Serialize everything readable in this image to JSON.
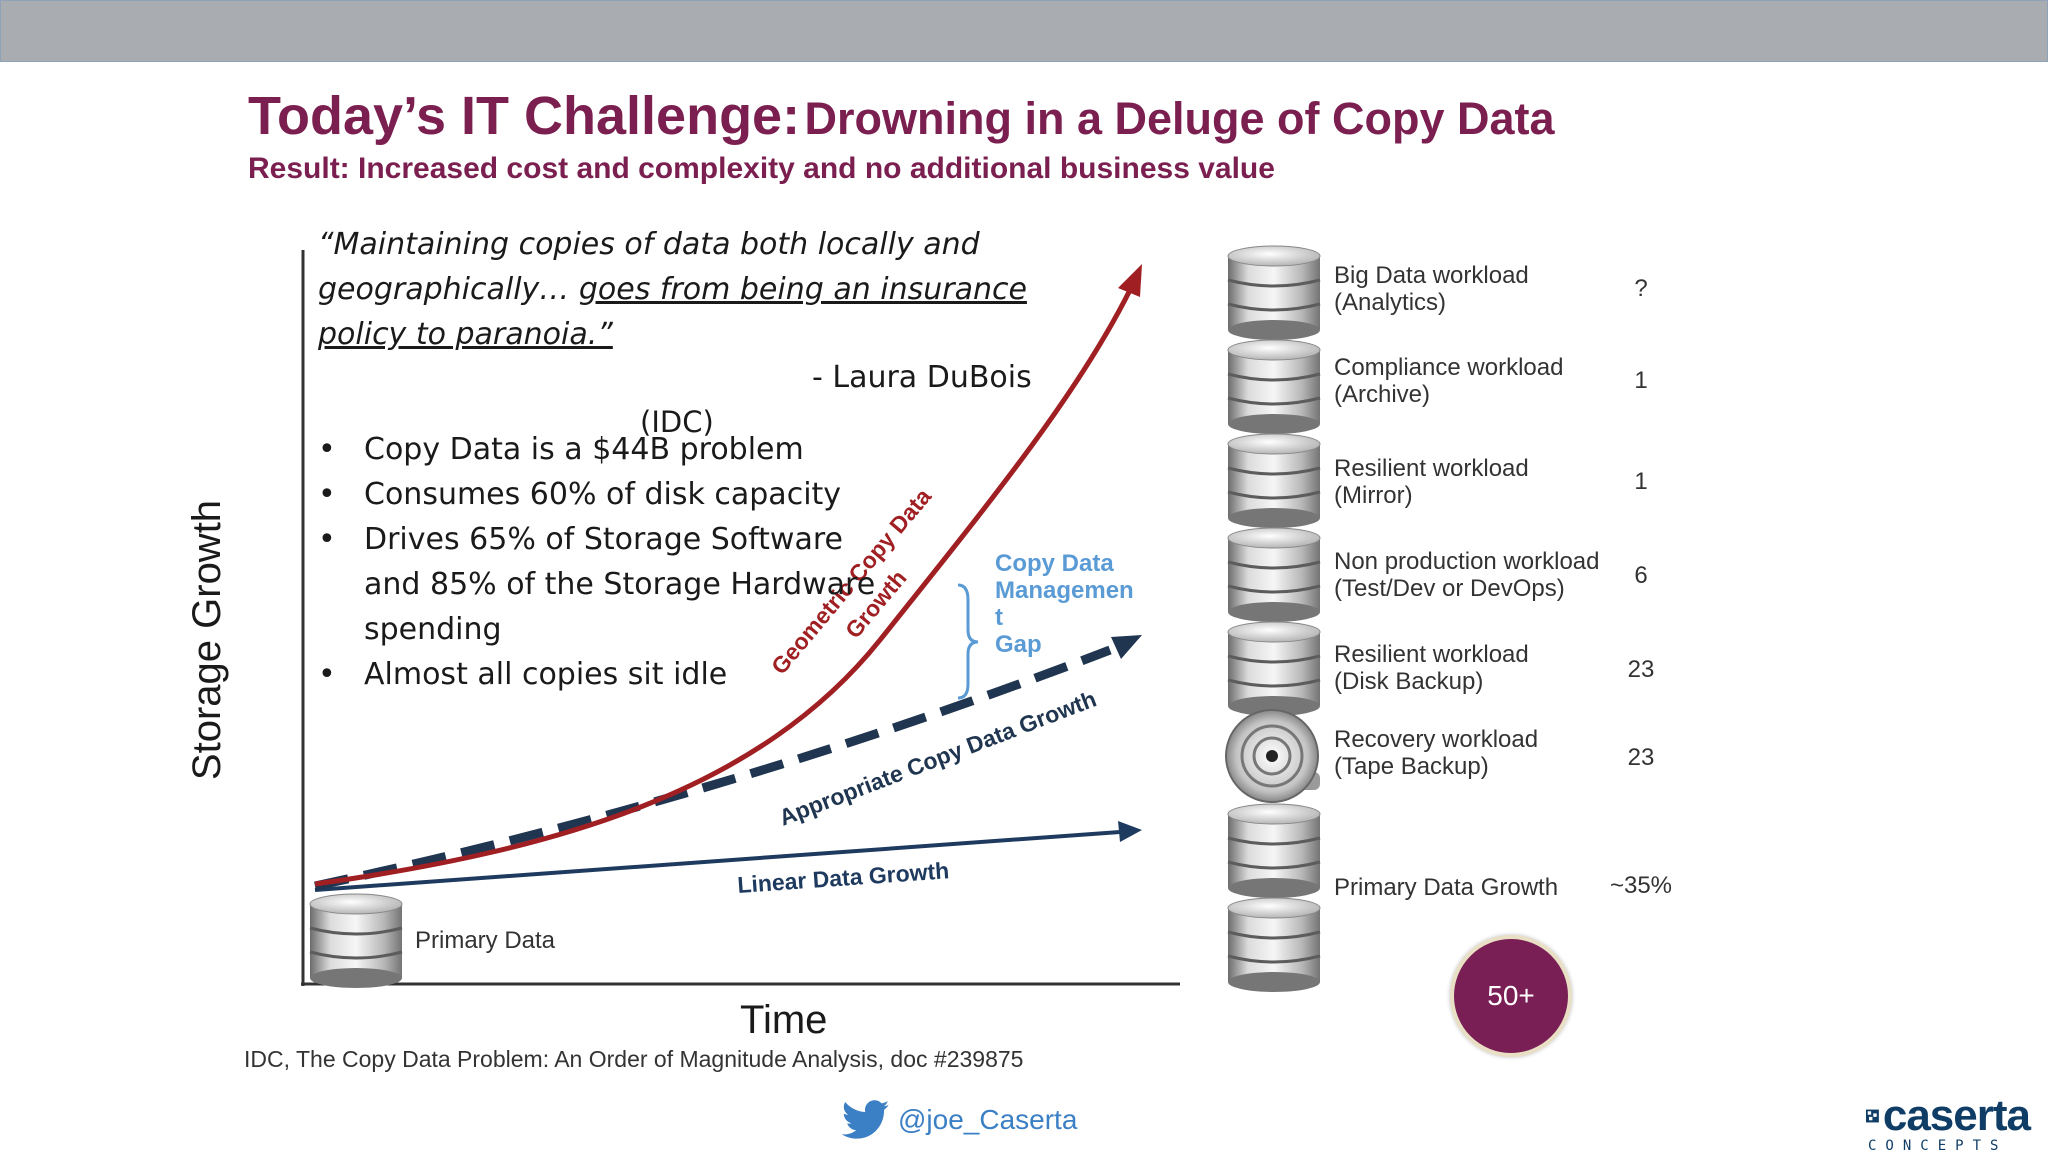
{
  "title": {
    "part1": "Today’s IT Challenge:",
    "part2": "Drowning in a Deluge of Copy Data",
    "subtitle": "Result: Increased cost and complexity and no additional business value"
  },
  "quote": {
    "line1": "“Maintaining copies of data both locally and",
    "line2_plain": "geographically… ",
    "line2_underlined": "goes from being an insurance",
    "line3_underlined": "policy to paranoia.”",
    "author": "- Laura DuBois",
    "source": "(IDC)"
  },
  "bullets": [
    "Copy Data is a $44B problem",
    "Consumes 60% of disk capacity",
    "Drives 65% of Storage Software and 85% of the Storage Hardware spending",
    "Almost all copies sit idle"
  ],
  "chart": {
    "y_axis_label": "Storage Growth",
    "x_axis_label": "Time",
    "geometric_label_1": "Geometric Copy Data",
    "geometric_label_2": "Growth",
    "appropriate_label": "Appropriate Copy Data Growth",
    "linear_label": "Linear Data Growth",
    "gap_label": [
      "Copy Data",
      "Managemen",
      "t",
      "Gap"
    ],
    "primary_label": "Primary Data",
    "colors": {
      "geometric": "#a01f22",
      "dashed": "#1f3550",
      "linear": "#1f3a5f",
      "gap": "#5b9bd5"
    }
  },
  "workloads": [
    {
      "line1": "Big Data workload",
      "line2": "(Analytics)",
      "value": "?",
      "icon": "database-icon"
    },
    {
      "line1": "Compliance workload",
      "line2": "(Archive)",
      "value": "1",
      "icon": "database-icon"
    },
    {
      "line1": "Resilient workload",
      "line2": "(Mirror)",
      "value": "1",
      "icon": "database-icon"
    },
    {
      "line1": "Non production workload",
      "line2": "(Test/Dev or DevOps)",
      "value": "6",
      "icon": "database-icon"
    },
    {
      "line1": "Resilient workload",
      "line2": "(Disk Backup)",
      "value": "23",
      "icon": "database-icon"
    },
    {
      "line1": "Recovery workload",
      "line2": "(Tape Backup)",
      "value": "23",
      "icon": "tape-reel-icon"
    },
    {
      "line1": "Primary Data Growth",
      "value": "~35%",
      "icon": "database-icon"
    }
  ],
  "total_badge": "50+",
  "citation": "IDC, The Copy Data Problem: An Order of Magnitude Analysis, doc #239875",
  "twitter_handle": "@joe_Caserta",
  "logo": {
    "name": "caserta",
    "tagline": "CONCEPTS"
  },
  "theme": {
    "title_color": "#7a1f4f",
    "accent_blue": "#3b7fc4"
  }
}
